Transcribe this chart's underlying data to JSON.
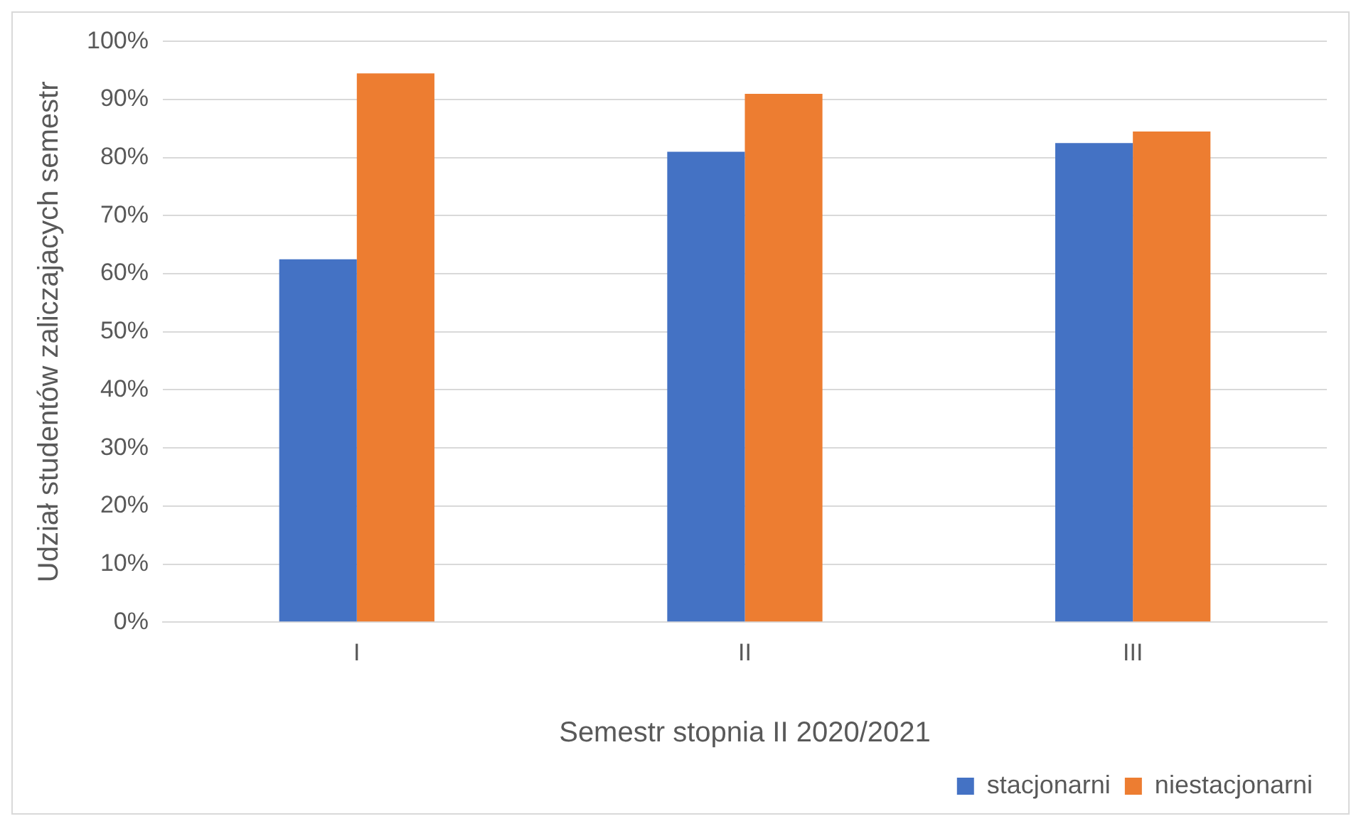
{
  "chart_data": {
    "type": "bar",
    "xlabel": "Semestr stopnia II 2020/2021",
    "ylabel": "Udział studentów zaliczajacych semestr",
    "categories": [
      "I",
      "II",
      "III"
    ],
    "series": [
      {
        "name": "stacjonarni",
        "color": "#4472c4",
        "values": [
          62.5,
          81,
          82.5
        ]
      },
      {
        "name": "niestacjonarni",
        "color": "#ed7d31",
        "values": [
          94.5,
          91,
          84.5
        ]
      }
    ],
    "ylim": [
      0,
      100
    ],
    "yticks": [
      {
        "value": 0,
        "label": "0%"
      },
      {
        "value": 10,
        "label": "10%"
      },
      {
        "value": 20,
        "label": "20%"
      },
      {
        "value": 30,
        "label": "30%"
      },
      {
        "value": 40,
        "label": "40%"
      },
      {
        "value": 50,
        "label": "50%"
      },
      {
        "value": 60,
        "label": "60%"
      },
      {
        "value": 70,
        "label": "70%"
      },
      {
        "value": 80,
        "label": "80%"
      },
      {
        "value": 90,
        "label": "90%"
      },
      {
        "value": 100,
        "label": "100%"
      }
    ],
    "grid": "y",
    "legend": "bottom right"
  }
}
